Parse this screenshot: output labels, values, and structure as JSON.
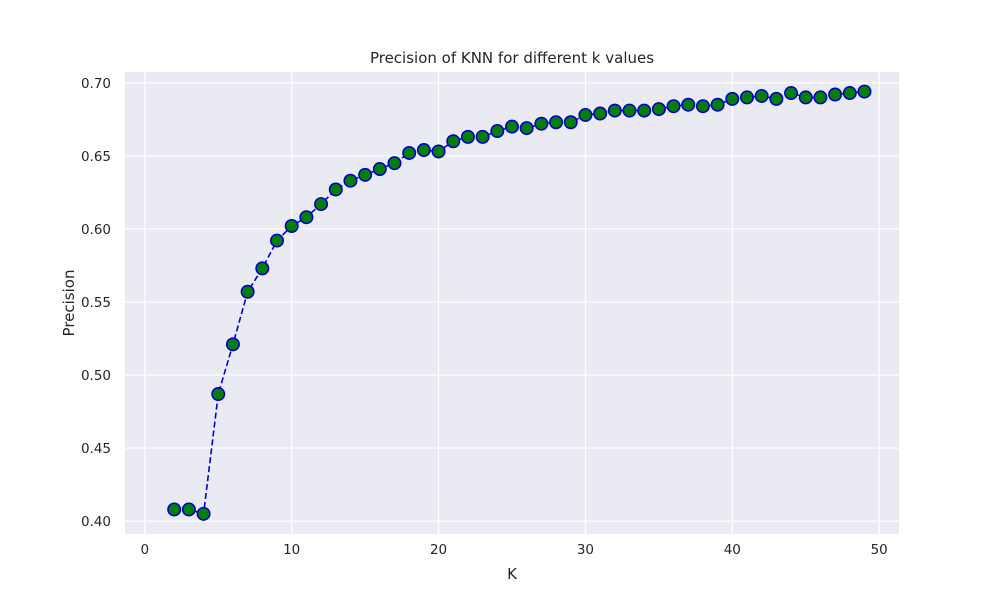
{
  "chart_data": {
    "type": "line",
    "title": "Precision of KNN for different k values",
    "xlabel": "K",
    "ylabel": "Precision",
    "xlim": [
      -1.35,
      51.35
    ],
    "ylim": [
      0.3912,
      0.7074
    ],
    "x_ticks": [
      0,
      10,
      20,
      30,
      40,
      50
    ],
    "y_ticks": [
      0.4,
      0.45,
      0.5,
      0.55,
      0.6,
      0.65,
      0.7
    ],
    "grid": true,
    "legend": "none",
    "line_color": "#0000cd",
    "line_style": "dashed",
    "marker_face_color": "#007f00",
    "marker_edge_color": "#0000cd",
    "background_color": "#eaeaf2",
    "series": [
      {
        "x": [
          2,
          3,
          4,
          5,
          6,
          7,
          8,
          9,
          10,
          11,
          12,
          13,
          14,
          15,
          16,
          17,
          18,
          19,
          20,
          21,
          22,
          23,
          24,
          25,
          26,
          27,
          28,
          29,
          30,
          31,
          32,
          33,
          34,
          35,
          36,
          37,
          38,
          39,
          40,
          41,
          42,
          43,
          44,
          45,
          46,
          47,
          48,
          49
        ],
        "y": [
          0.408,
          0.408,
          0.405,
          0.487,
          0.521,
          0.557,
          0.573,
          0.592,
          0.602,
          0.608,
          0.617,
          0.627,
          0.633,
          0.637,
          0.641,
          0.645,
          0.652,
          0.654,
          0.653,
          0.66,
          0.663,
          0.663,
          0.667,
          0.67,
          0.669,
          0.672,
          0.673,
          0.673,
          0.678,
          0.679,
          0.681,
          0.681,
          0.681,
          0.682,
          0.684,
          0.685,
          0.684,
          0.685,
          0.689,
          0.69,
          0.691,
          0.689,
          0.693,
          0.69,
          0.69,
          0.692,
          0.693,
          0.694
        ]
      }
    ]
  }
}
